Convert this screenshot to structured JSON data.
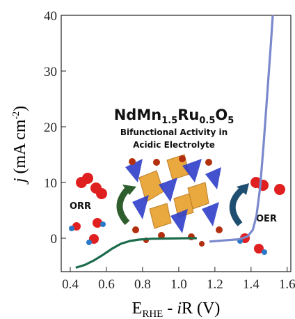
{
  "chart_data": {
    "type": "line",
    "annotation_formula": [
      "NdMn",
      "1.5",
      "Ru",
      "0.5",
      "O",
      "5"
    ],
    "annotation_lines": [
      "Bifunctional Activity in",
      "Acidic Electrolyte"
    ],
    "left_label": "ORR",
    "right_label": "OER",
    "y_label": [
      "j",
      " (mA cm",
      "-2",
      ")"
    ],
    "x_label": [
      "E",
      "RHE",
      " - ",
      "i",
      "R  (V)"
    ],
    "xlim": [
      0.35,
      1.62
    ],
    "ylim": [
      -6,
      40
    ],
    "xticks": [
      0.4,
      0.6,
      0.8,
      {
        "value": 1,
        "label": "1.0"
      },
      1.2,
      1.4,
      1.6
    ],
    "yticks": [
      0,
      10,
      20,
      30,
      40
    ],
    "series": [
      {
        "color": "#1b6b4c",
        "x": [
          0.43,
          0.48,
          0.53,
          0.58,
          0.63,
          0.68,
          0.73,
          0.78,
          0.85,
          0.95,
          1.05,
          1.1
        ],
        "values": [
          -5.3,
          -4.8,
          -4.0,
          -3.0,
          -1.9,
          -1.0,
          -0.5,
          -0.25,
          -0.1,
          -0.05,
          0,
          0
        ]
      },
      {
        "color": "#7a88cc",
        "x": [
          1.17,
          1.25,
          1.33,
          1.38,
          1.41,
          1.43,
          1.45,
          1.47,
          1.49,
          1.51,
          1.52
        ],
        "values": [
          -0.6,
          -0.4,
          -0.2,
          0.3,
          1.5,
          4,
          9,
          17,
          26,
          35,
          40
        ]
      }
    ]
  }
}
